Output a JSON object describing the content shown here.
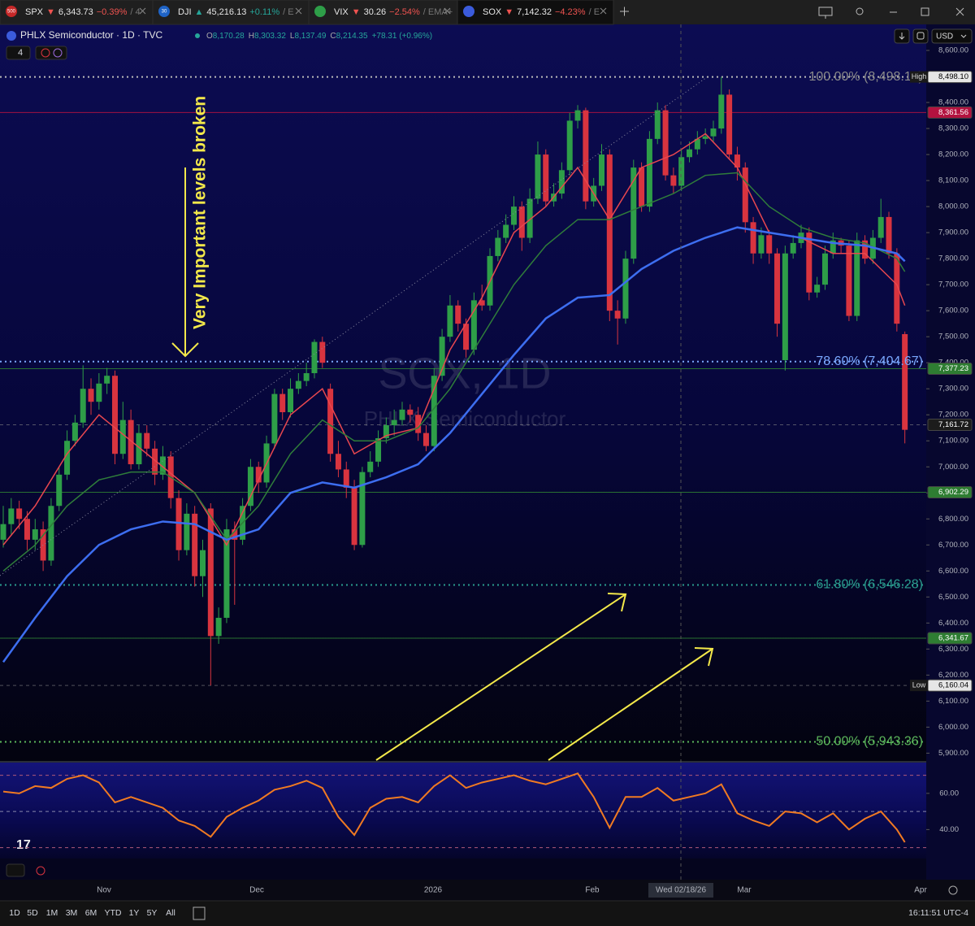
{
  "tabs": [
    {
      "badge": "500",
      "badge_color": "#c62828",
      "symbol": "SPX",
      "arrow": "▼",
      "price": "6,343.73",
      "change": "−0.39%",
      "rest": "/ 4",
      "change_color": "#ef5350"
    },
    {
      "badge": "30",
      "badge_color": "#1e63c6",
      "symbol": "DJI",
      "arrow": "▲",
      "price": "45,216.13",
      "change": "+0.11%",
      "rest": "/ E",
      "change_color": "#26a69a"
    },
    {
      "symbol": "VIX",
      "arrow": "▼",
      "price": "30.26",
      "change": "−2.54%",
      "rest": "/ EMA+",
      "change_color": "#ef5350"
    },
    {
      "symbol": "SOX",
      "arrow": "▼",
      "price": "7,142.32",
      "change": "−4.23%",
      "rest": "/ E",
      "change_color": "#ef5350"
    }
  ],
  "header": {
    "title": "PHLX Semiconductor · 1D · TVC",
    "ohlc": [
      {
        "key": "O",
        "value": "8,170.28"
      },
      {
        "key": "H",
        "value": "8,303.32"
      },
      {
        "key": "L",
        "value": "8,137.49"
      },
      {
        "key": "C",
        "value": "8,214.35"
      }
    ],
    "change": "+78.31 (+0.96%)",
    "indicators": "4",
    "currency": "USD"
  },
  "chart": {
    "watermark": "SOX, 1D",
    "watermark_sub": "PHLX Semiconductor",
    "annotation": "Very Important levels broken",
    "ylim": [
      5870,
      8700
    ],
    "yticks": [
      {
        "value": 8600,
        "label": "8,600.00"
      },
      {
        "value": 8500,
        "label": "8,500.00"
      },
      {
        "value": 8400,
        "label": "8,400.00"
      },
      {
        "value": 8300,
        "label": "8,300.00"
      },
      {
        "value": 8200,
        "label": "8,200.00"
      },
      {
        "value": 8100,
        "label": "8,100.00"
      },
      {
        "value": 8000,
        "label": "8,000.00"
      },
      {
        "value": 7900,
        "label": "7,900.00"
      },
      {
        "value": 7800,
        "label": "7,800.00"
      },
      {
        "value": 7700,
        "label": "7,700.00"
      },
      {
        "value": 7600,
        "label": "7,600.00"
      },
      {
        "value": 7500,
        "label": "7,500.00"
      },
      {
        "value": 7400,
        "label": "7,400.00"
      },
      {
        "value": 7300,
        "label": "7,300.00"
      },
      {
        "value": 7200,
        "label": "7,200.00"
      },
      {
        "value": 7100,
        "label": "7,100.00"
      },
      {
        "value": 7000,
        "label": "7,000.00"
      },
      {
        "value": 6900,
        "label": "6,900.00"
      },
      {
        "value": 6800,
        "label": "6,800.00"
      },
      {
        "value": 6700,
        "label": "6,700.00"
      },
      {
        "value": 6600,
        "label": "6,600.00"
      },
      {
        "value": 6500,
        "label": "6,500.00"
      },
      {
        "value": 6400,
        "label": "6,400.00"
      },
      {
        "value": 6300,
        "label": "6,300.00"
      },
      {
        "value": 6200,
        "label": "6,200.00"
      },
      {
        "value": 6100,
        "label": "6,100.00"
      },
      {
        "value": 6000,
        "label": "6,000.00"
      },
      {
        "value": 5900,
        "label": "5,900.00"
      }
    ],
    "up_color": "#2e9e48",
    "down_color": "#d8343f",
    "candles": [
      [
        6720,
        6850,
        6690,
        6780
      ],
      [
        6780,
        6880,
        6740,
        6840
      ],
      [
        6840,
        6870,
        6760,
        6800
      ],
      [
        6800,
        6830,
        6680,
        6720
      ],
      [
        6720,
        6800,
        6680,
        6760
      ],
      [
        6760,
        6790,
        6600,
        6640
      ],
      [
        6640,
        6880,
        6620,
        6850
      ],
      [
        6850,
        7000,
        6830,
        6970
      ],
      [
        6970,
        7140,
        6950,
        7100
      ],
      [
        7100,
        7200,
        7080,
        7170
      ],
      [
        7170,
        7390,
        7150,
        7300
      ],
      [
        7300,
        7340,
        7200,
        7250
      ],
      [
        7250,
        7360,
        7220,
        7320
      ],
      [
        7320,
        7380,
        7280,
        7350
      ],
      [
        7350,
        7370,
        7010,
        7050
      ],
      [
        7050,
        7250,
        7030,
        7180
      ],
      [
        7180,
        7220,
        6990,
        7010
      ],
      [
        7010,
        7160,
        6990,
        7130
      ],
      [
        7130,
        7160,
        7040,
        7070
      ],
      [
        7070,
        7100,
        6930,
        6970
      ],
      [
        6970,
        7080,
        6950,
        7040
      ],
      [
        7040,
        7060,
        6840,
        6880
      ],
      [
        6880,
        6910,
        6640,
        6680
      ],
      [
        6680,
        6860,
        6660,
        6820
      ],
      [
        6820,
        6850,
        6540,
        6580
      ],
      [
        6580,
        6720,
        6500,
        6680
      ],
      [
        6840,
        6860,
        6160,
        6350
      ],
      [
        6350,
        6460,
        6320,
        6420
      ],
      [
        6420,
        6800,
        6400,
        6760
      ],
      [
        6760,
        6790,
        6470,
        6720
      ],
      [
        6720,
        6880,
        6700,
        6850
      ],
      [
        6850,
        7030,
        6830,
        7000
      ],
      [
        7000,
        7020,
        6900,
        6940
      ],
      [
        6940,
        7120,
        6920,
        7090
      ],
      [
        7090,
        7300,
        7070,
        7280
      ],
      [
        7280,
        7300,
        7180,
        7210
      ],
      [
        7210,
        7340,
        7190,
        7300
      ],
      [
        7300,
        7360,
        7280,
        7330
      ],
      [
        7330,
        7400,
        7310,
        7360
      ],
      [
        7360,
        7490,
        7340,
        7480
      ],
      [
        7480,
        7500,
        7380,
        7400
      ],
      [
        7300,
        7320,
        7020,
        7050
      ],
      [
        7050,
        7100,
        6960,
        6990
      ],
      [
        6990,
        7020,
        6880,
        6920
      ],
      [
        6920,
        6950,
        6680,
        6700
      ],
      [
        6700,
        7000,
        6690,
        6980
      ],
      [
        6980,
        7060,
        6960,
        7020
      ],
      [
        7020,
        7140,
        7000,
        7110
      ],
      [
        7110,
        7190,
        7090,
        7160
      ],
      [
        7160,
        7220,
        7120,
        7180
      ],
      [
        7180,
        7250,
        7160,
        7220
      ],
      [
        7220,
        7240,
        7170,
        7200
      ],
      [
        7200,
        7230,
        7100,
        7130
      ],
      [
        7130,
        7160,
        7060,
        7080
      ],
      [
        7080,
        7380,
        7060,
        7350
      ],
      [
        7350,
        7530,
        7330,
        7500
      ],
      [
        7500,
        7660,
        7480,
        7620
      ],
      [
        7620,
        7640,
        7520,
        7550
      ],
      [
        7550,
        7570,
        7420,
        7450
      ],
      [
        7450,
        7670,
        7430,
        7640
      ],
      [
        7640,
        7700,
        7600,
        7620
      ],
      [
        7620,
        7840,
        7600,
        7810
      ],
      [
        7810,
        7910,
        7790,
        7880
      ],
      [
        7880,
        7970,
        7860,
        7930
      ],
      [
        7930,
        8040,
        7910,
        8000
      ],
      [
        8000,
        8020,
        7830,
        7880
      ],
      [
        7880,
        8070,
        7860,
        8030
      ],
      [
        8030,
        8250,
        8010,
        8200
      ],
      [
        8200,
        8220,
        8000,
        8020
      ],
      [
        8020,
        8090,
        8000,
        8050
      ],
      [
        8050,
        8170,
        8030,
        8140
      ],
      [
        8140,
        8360,
        8120,
        8330
      ],
      [
        8330,
        8390,
        8300,
        8370
      ],
      [
        8370,
        8380,
        7990,
        8020
      ],
      [
        8020,
        8110,
        8000,
        8080
      ],
      [
        8080,
        8240,
        8060,
        8200
      ],
      [
        8200,
        8220,
        7560,
        7600
      ],
      [
        7600,
        7640,
        7470,
        7570
      ],
      [
        7570,
        7830,
        7550,
        7800
      ],
      [
        7800,
        8180,
        7780,
        8150
      ],
      [
        8150,
        8170,
        7980,
        8000
      ],
      [
        8000,
        8290,
        7980,
        8260
      ],
      [
        8260,
        8400,
        8240,
        8370
      ],
      [
        8370,
        8390,
        8100,
        8120
      ],
      [
        8120,
        8150,
        8050,
        8080
      ],
      [
        8080,
        8220,
        8060,
        8190
      ],
      [
        8190,
        8250,
        8170,
        8220
      ],
      [
        8220,
        8290,
        8200,
        8260
      ],
      [
        8260,
        8300,
        8240,
        8270
      ],
      [
        8270,
        8330,
        8250,
        8300
      ],
      [
        8300,
        8498.1,
        8280,
        8430
      ],
      [
        8430,
        8450,
        8180,
        8200
      ],
      [
        8200,
        8230,
        8100,
        8150
      ],
      [
        8150,
        8170,
        7900,
        7940
      ],
      [
        7940,
        7960,
        7780,
        7820
      ],
      [
        7820,
        7920,
        7800,
        7890
      ],
      [
        7890,
        7910,
        7780,
        7820
      ],
      [
        7820,
        7840,
        7500,
        7550
      ],
      [
        7410,
        7850,
        7370,
        7820
      ],
      [
        7820,
        7890,
        7800,
        7860
      ],
      [
        7860,
        7930,
        7840,
        7900
      ],
      [
        7900,
        7920,
        7640,
        7670
      ],
      [
        7670,
        7730,
        7650,
        7700
      ],
      [
        7700,
        7850,
        7680,
        7820
      ],
      [
        7820,
        7900,
        7800,
        7870
      ],
      [
        7870,
        7880,
        7820,
        7850
      ],
      [
        7850,
        7870,
        7560,
        7580
      ],
      [
        7580,
        7900,
        7560,
        7870
      ],
      [
        7870,
        7890,
        7780,
        7800
      ],
      [
        7800,
        7910,
        7780,
        7880
      ],
      [
        7880,
        8030,
        7860,
        7960
      ],
      [
        7960,
        7980,
        7800,
        7820
      ],
      [
        7820,
        7840,
        7520,
        7550
      ],
      [
        7510,
        7520,
        7090,
        7142.32
      ]
    ],
    "ema_x": [
      0,
      4,
      8,
      12,
      16,
      20,
      24,
      28,
      32,
      36,
      40,
      44,
      48,
      52,
      56,
      60,
      64,
      68,
      72,
      76,
      80,
      84,
      88,
      92,
      96,
      100,
      104,
      108,
      112,
      113
    ],
    "emas": [
      {
        "color": "#e8474f",
        "values": [
          6700,
          6850,
          7050,
          7200,
          7100,
          7000,
          6900,
          6700,
          6950,
          7200,
          7300,
          7050,
          7120,
          7150,
          7450,
          7650,
          7900,
          8000,
          8150,
          7950,
          8150,
          8200,
          8280,
          8150,
          7900,
          7880,
          7820,
          7820,
          7700,
          7620
        ]
      },
      {
        "color": "#2f7d3a",
        "values": [
          6600,
          6700,
          6850,
          6950,
          6980,
          6980,
          6900,
          6720,
          6850,
          7050,
          7180,
          7100,
          7100,
          7150,
          7300,
          7500,
          7700,
          7850,
          7950,
          7950,
          8000,
          8050,
          8120,
          8130,
          8000,
          7920,
          7880,
          7860,
          7800,
          7750
        ]
      },
      {
        "color": "#3d6ef0",
        "values": [
          6250,
          6420,
          6580,
          6700,
          6760,
          6790,
          6780,
          6720,
          6760,
          6900,
          6940,
          6920,
          6960,
          7010,
          7130,
          7280,
          7430,
          7570,
          7650,
          7660,
          7760,
          7830,
          7880,
          7920,
          7900,
          7880,
          7860,
          7850,
          7820,
          7790
        ]
      }
    ],
    "fib": [
      {
        "label": "100.00% (8,498.10)",
        "value": 8498.1,
        "color": "#8a8a8a"
      },
      {
        "label": "78.60% (7,404.67)",
        "value": 7404.67,
        "color": "#7aa8ff"
      },
      {
        "label": "61.80% (6,546.28)",
        "value": 6546.28,
        "color": "#2a9d8f"
      },
      {
        "label": "50.00% (5,943.36)",
        "value": 5943.36,
        "color": "#5cb85c"
      }
    ],
    "price_labels": [
      {
        "tag": "High",
        "label": "8,498.10",
        "value": 8498.1,
        "bg": "#e6e6e6",
        "fg": "#000000"
      },
      {
        "label": "8,361.56",
        "value": 8361.56,
        "bg": "#b3123f",
        "fg": "#ffffff",
        "line": "solid"
      },
      {
        "label": "7,377.23",
        "value": 7377.23,
        "bg": "#2e7d32",
        "fg": "#ffffff",
        "line": "solid"
      },
      {
        "label": "7,161.72",
        "value": 7161.72,
        "bg": "#1c1c1c",
        "fg": "#ffffff",
        "line": "dashed"
      },
      {
        "label": "6,902.29",
        "value": 6902.29,
        "bg": "#2e7d32",
        "fg": "#ffffff",
        "line": "solid"
      },
      {
        "label": "6,341.67",
        "value": 6341.67,
        "bg": "#2e7d32",
        "fg": "#ffffff",
        "line": "solid"
      },
      {
        "tag": "Low",
        "label": "6,160.04",
        "value": 6160.04,
        "bg": "#e6e6e6",
        "fg": "#000000",
        "line": "dashed"
      }
    ]
  },
  "rsi": {
    "ylim": [
      24,
      77
    ],
    "yticks": [
      {
        "value": 60,
        "label": "60.00"
      },
      {
        "value": 40,
        "label": "40.00"
      }
    ],
    "levels": [
      70,
      50,
      30
    ],
    "color": "#f07a22",
    "x": [
      0,
      2,
      4,
      6,
      8,
      10,
      12,
      14,
      16,
      18,
      20,
      22,
      24,
      26,
      28,
      30,
      32,
      34,
      36,
      38,
      40,
      42,
      44,
      46,
      48,
      50,
      52,
      54,
      56,
      58,
      60,
      62,
      64,
      66,
      68,
      70,
      72,
      74,
      76,
      78,
      80,
      82,
      84,
      86,
      88,
      90,
      92,
      94,
      96,
      98,
      100,
      102,
      104,
      106,
      108,
      110,
      112,
      113
    ],
    "values": [
      61,
      60,
      64,
      63,
      68,
      70,
      66,
      55,
      58,
      55,
      52,
      45,
      42,
      36,
      47,
      52,
      56,
      62,
      64,
      67,
      63,
      47,
      37,
      52,
      57,
      58,
      55,
      64,
      70,
      63,
      66,
      68,
      70,
      67,
      65,
      68,
      71,
      58,
      41,
      58,
      58,
      63,
      56,
      58,
      60,
      65,
      49,
      45,
      42,
      50,
      49,
      44,
      49,
      40,
      46,
      50,
      40,
      33
    ]
  },
  "time_axis": [
    "Nov",
    "Dec",
    "2026",
    "Feb",
    "Wed 02/18/26",
    "Mar",
    "Apr"
  ],
  "toolbar": {
    "ranges": [
      "1D",
      "5D",
      "1M",
      "3M",
      "6M",
      "YTD",
      "1Y",
      "5Y",
      "All"
    ],
    "clock": "16:11:51 UTC-4"
  }
}
